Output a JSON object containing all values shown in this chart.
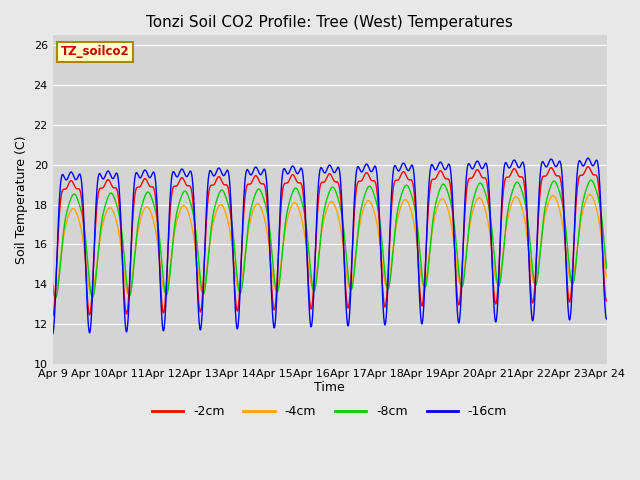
{
  "title": "Tonzi Soil CO2 Profile: Tree (West) Temperatures",
  "ylabel": "Soil Temperature (C)",
  "xlabel": "Time",
  "legend_label": "TZ_soilco2",
  "ylim": [
    10,
    26.5
  ],
  "yticks": [
    10,
    12,
    14,
    16,
    18,
    20,
    22,
    24,
    26
  ],
  "series_labels": [
    "-2cm",
    "-4cm",
    "-8cm",
    "-16cm"
  ],
  "series_colors": [
    "#ff0000",
    "#ffa500",
    "#00cc00",
    "#0000ff"
  ],
  "background_color": "#e8e8e8",
  "plot_bg_color": "#d4d4d4",
  "xtick_labels": [
    "Apr 9",
    "Apr 10",
    "Apr 11",
    "Apr 12",
    "Apr 13",
    "Apr 14",
    "Apr 15",
    "Apr 16",
    "Apr 17",
    "Apr 18",
    "Apr 19",
    "Apr 20",
    "Apr 21",
    "Apr 22",
    "Apr 23",
    "Apr 24"
  ],
  "figsize": [
    6.4,
    4.8
  ],
  "dpi": 100
}
